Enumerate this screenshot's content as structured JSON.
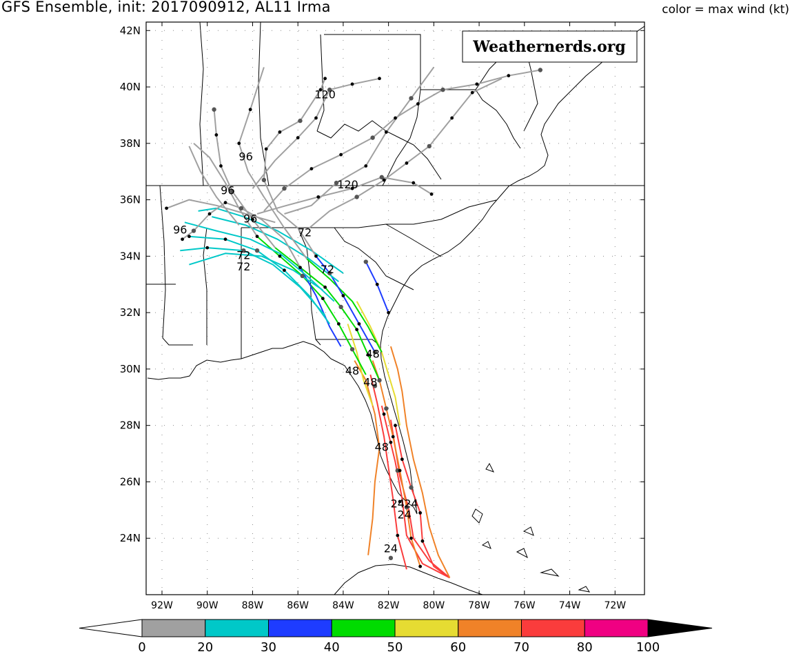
{
  "title": "GFS Ensemble, init: 2017090912, AL11 Irma",
  "color_label": "color = max wind (kt)",
  "watermark": "Weathernerds.org",
  "axes": {
    "lat_labels": [
      "42N",
      "40N",
      "38N",
      "36N",
      "34N",
      "32N",
      "30N",
      "28N",
      "26N",
      "24N"
    ],
    "lat_values": [
      42,
      40,
      38,
      36,
      34,
      32,
      30,
      28,
      26,
      24
    ],
    "lon_labels": [
      "92W",
      "90W",
      "88W",
      "86W",
      "84W",
      "82W",
      "80W",
      "78W",
      "76W",
      "74W",
      "72W"
    ],
    "lon_values": [
      -92,
      -90,
      -88,
      -86,
      -84,
      -82,
      -80,
      -78,
      -76,
      -74,
      -72
    ],
    "lon_range": [
      -92.7,
      -70.7
    ],
    "lat_range": [
      22.0,
      42.3
    ],
    "grid": true
  },
  "colorbar": {
    "ticks": [
      "0",
      "20",
      "30",
      "40",
      "50",
      "60",
      "70",
      "80",
      "100"
    ],
    "bins": [
      {
        "range": "0-20",
        "color": "#a0a0a0"
      },
      {
        "range": "20-30",
        "color": "#00c8c8"
      },
      {
        "range": "30-40",
        "color": "#1e3cff"
      },
      {
        "range": "40-50",
        "color": "#00dc00"
      },
      {
        "range": "50-60",
        "color": "#e6dc32"
      },
      {
        "range": "60-70",
        "color": "#f08228"
      },
      {
        "range": "70-80",
        "color": "#fa3c3c"
      },
      {
        "range": "80-100",
        "color": "#f00082"
      }
    ],
    "under_color": "#ffffff",
    "over_color": "#000000"
  },
  "forecast_hour_labels": [
    {
      "text": "24",
      "lon": -81.9,
      "lat": 23.5
    },
    {
      "text": "24",
      "lon": -81.6,
      "lat": 25.1
    },
    {
      "text": "24",
      "lon": -81.3,
      "lat": 24.7
    },
    {
      "text": "24",
      "lon": -81.0,
      "lat": 25.1
    },
    {
      "text": "48",
      "lon": -82.3,
      "lat": 27.1
    },
    {
      "text": "48",
      "lon": -82.8,
      "lat": 29.4
    },
    {
      "text": "48",
      "lon": -83.6,
      "lat": 29.8
    },
    {
      "text": "48",
      "lon": -82.7,
      "lat": 30.4
    },
    {
      "text": "72",
      "lon": -88.4,
      "lat": 33.5
    },
    {
      "text": "72",
      "lon": -88.4,
      "lat": 33.9
    },
    {
      "text": "72",
      "lon": -84.7,
      "lat": 33.4
    },
    {
      "text": "72",
      "lon": -85.7,
      "lat": 34.7
    },
    {
      "text": "96",
      "lon": -91.2,
      "lat": 34.8
    },
    {
      "text": "96",
      "lon": -88.1,
      "lat": 35.2
    },
    {
      "text": "96",
      "lon": -89.1,
      "lat": 36.2
    },
    {
      "text": "96",
      "lon": -88.3,
      "lat": 37.4
    },
    {
      "text": "120",
      "lon": -84.8,
      "lat": 39.6
    },
    {
      "text": "120",
      "lon": -83.8,
      "lat": 36.4
    }
  ],
  "tracks": [
    {
      "color": "#fa3c3c",
      "points": [
        [
          -79.3,
          22.6
        ],
        [
          -80.0,
          23.0
        ],
        [
          -80.5,
          23.9
        ],
        [
          -80.6,
          24.9
        ],
        [
          -81.0,
          25.8
        ],
        [
          -81.4,
          26.8
        ],
        [
          -81.7,
          28.0
        ]
      ]
    },
    {
      "color": "#fa3c3c",
      "points": [
        [
          -79.3,
          22.6
        ],
        [
          -80.2,
          23.2
        ],
        [
          -80.9,
          24.0
        ],
        [
          -81.1,
          25.0
        ],
        [
          -81.5,
          26.2
        ],
        [
          -81.7,
          27.2
        ],
        [
          -81.9,
          28.2
        ]
      ]
    },
    {
      "color": "#fa3c3c",
      "points": [
        [
          -79.3,
          22.6
        ],
        [
          -80.5,
          23.1
        ],
        [
          -81.2,
          24.1
        ],
        [
          -81.4,
          25.4
        ],
        [
          -81.7,
          26.7
        ],
        [
          -82.0,
          27.7
        ],
        [
          -82.3,
          28.7
        ]
      ]
    },
    {
      "color": "#f08228",
      "points": [
        [
          -79.3,
          22.6
        ],
        [
          -79.8,
          23.4
        ],
        [
          -80.2,
          24.4
        ],
        [
          -80.5,
          25.6
        ],
        [
          -80.9,
          26.8
        ],
        [
          -81.2,
          28.0
        ],
        [
          -81.4,
          29.2
        ],
        [
          -81.6,
          30.0
        ],
        [
          -81.9,
          30.8
        ]
      ]
    },
    {
      "color": "#f08228",
      "points": [
        [
          -80.6,
          23.0
        ],
        [
          -81.0,
          24.0
        ],
        [
          -81.2,
          25.1
        ],
        [
          -81.5,
          26.4
        ],
        [
          -81.8,
          27.6
        ],
        [
          -82.1,
          28.6
        ],
        [
          -82.4,
          29.6
        ],
        [
          -82.7,
          30.3
        ]
      ]
    },
    {
      "color": "#f08228",
      "points": [
        [
          -82.9,
          23.4
        ],
        [
          -82.7,
          24.7
        ],
        [
          -82.6,
          26.0
        ],
        [
          -82.4,
          27.2
        ],
        [
          -82.6,
          28.4
        ],
        [
          -83.0,
          29.6
        ],
        [
          -83.5,
          30.3
        ]
      ]
    },
    {
      "color": "#fa3c3c",
      "points": [
        [
          -81.2,
          22.9
        ],
        [
          -81.6,
          24.1
        ],
        [
          -81.8,
          25.4
        ],
        [
          -82.0,
          26.5
        ],
        [
          -82.2,
          27.6
        ],
        [
          -82.5,
          28.8
        ],
        [
          -82.8,
          29.8
        ]
      ]
    },
    {
      "color": "#e6dc32",
      "points": [
        [
          -81.5,
          28.0
        ],
        [
          -81.7,
          29.0
        ],
        [
          -82.0,
          29.8
        ],
        [
          -82.3,
          30.6
        ],
        [
          -82.8,
          31.5
        ],
        [
          -83.4,
          32.4
        ]
      ]
    },
    {
      "color": "#e6dc32",
      "points": [
        [
          -82.7,
          28.7
        ],
        [
          -83.1,
          29.6
        ],
        [
          -83.4,
          30.6
        ],
        [
          -83.8,
          31.6
        ]
      ]
    },
    {
      "color": "#00dc00",
      "points": [
        [
          -82.4,
          29.6
        ],
        [
          -82.9,
          30.5
        ],
        [
          -83.4,
          31.4
        ],
        [
          -84.1,
          32.2
        ],
        [
          -84.8,
          32.9
        ],
        [
          -85.9,
          33.6
        ],
        [
          -87.0,
          34.3
        ]
      ]
    },
    {
      "color": "#00dc00",
      "points": [
        [
          -83.0,
          29.8
        ],
        [
          -83.6,
          30.7
        ],
        [
          -84.2,
          31.6
        ],
        [
          -84.9,
          32.5
        ],
        [
          -85.8,
          33.3
        ],
        [
          -86.8,
          34.0
        ],
        [
          -87.8,
          34.7
        ]
      ]
    },
    {
      "color": "#00dc00",
      "points": [
        [
          -82.3,
          30.6
        ],
        [
          -82.9,
          31.5
        ],
        [
          -83.6,
          32.4
        ],
        [
          -84.6,
          33.2
        ],
        [
          -85.6,
          33.9
        ]
      ]
    },
    {
      "color": "#1e3cff",
      "points": [
        [
          -82.6,
          30.6
        ],
        [
          -83.3,
          31.6
        ],
        [
          -84.0,
          32.6
        ],
        [
          -84.6,
          33.4
        ],
        [
          -85.2,
          34.0
        ]
      ]
    },
    {
      "color": "#1e3cff",
      "points": [
        [
          -84.1,
          30.8
        ],
        [
          -84.6,
          31.5
        ],
        [
          -85.2,
          32.6
        ],
        [
          -85.9,
          33.6
        ]
      ]
    },
    {
      "color": "#1e3cff",
      "points": [
        [
          -82.0,
          32.0
        ],
        [
          -82.5,
          33.0
        ],
        [
          -83.0,
          33.8
        ]
      ]
    },
    {
      "color": "#00c8c8",
      "points": [
        [
          -84.6,
          31.6
        ],
        [
          -85.5,
          32.6
        ],
        [
          -86.6,
          33.5
        ],
        [
          -87.8,
          34.2
        ],
        [
          -89.2,
          34.6
        ],
        [
          -90.8,
          34.7
        ]
      ]
    },
    {
      "color": "#00c8c8",
      "points": [
        [
          -84.8,
          31.9
        ],
        [
          -85.9,
          32.9
        ],
        [
          -87.1,
          33.7
        ],
        [
          -88.4,
          34.2
        ],
        [
          -90.0,
          34.3
        ],
        [
          -91.2,
          34.2
        ]
      ]
    },
    {
      "color": "#00c8c8",
      "points": [
        [
          -84.4,
          32.4
        ],
        [
          -85.6,
          33.3
        ],
        [
          -86.8,
          34.1
        ],
        [
          -88.1,
          34.6
        ],
        [
          -89.6,
          34.9
        ],
        [
          -91.0,
          35.2
        ]
      ]
    },
    {
      "color": "#00c8c8",
      "points": [
        [
          -84.9,
          32.8
        ],
        [
          -86.2,
          33.5
        ],
        [
          -87.6,
          34.0
        ],
        [
          -89.2,
          34.1
        ],
        [
          -90.8,
          33.7
        ]
      ]
    },
    {
      "color": "#00c8c8",
      "points": [
        [
          -84.2,
          33.1
        ],
        [
          -85.5,
          33.9
        ],
        [
          -86.9,
          34.6
        ],
        [
          -88.3,
          35.1
        ],
        [
          -89.8,
          35.4
        ]
      ]
    },
    {
      "color": "#00c8c8",
      "points": [
        [
          -84.0,
          33.4
        ],
        [
          -85.4,
          34.2
        ],
        [
          -86.9,
          34.9
        ],
        [
          -88.4,
          35.4
        ],
        [
          -89.6,
          35.7
        ],
        [
          -90.4,
          35.6
        ]
      ]
    },
    {
      "color": "#a0a0a0",
      "points": [
        [
          -87.0,
          34.3
        ],
        [
          -88.0,
          35.3
        ],
        [
          -88.9,
          36.3
        ],
        [
          -89.4,
          37.2
        ],
        [
          -89.6,
          38.3
        ],
        [
          -89.7,
          39.2
        ]
      ]
    },
    {
      "color": "#a0a0a0",
      "points": [
        [
          -87.8,
          34.7
        ],
        [
          -88.6,
          35.7
        ],
        [
          -89.2,
          36.6
        ],
        [
          -89.9,
          37.5
        ],
        [
          -90.6,
          38.0
        ]
      ]
    },
    {
      "color": "#a0a0a0",
      "points": [
        [
          -85.6,
          33.9
        ],
        [
          -86.6,
          35.0
        ],
        [
          -87.5,
          36.1
        ],
        [
          -88.2,
          37.0
        ],
        [
          -88.6,
          38.0
        ],
        [
          -88.1,
          39.2
        ],
        [
          -87.5,
          40.7
        ]
      ]
    },
    {
      "color": "#a0a0a0",
      "points": [
        [
          -85.2,
          34.0
        ],
        [
          -86.0,
          35.0
        ],
        [
          -86.9,
          35.6
        ],
        [
          -87.5,
          36.7
        ],
        [
          -87.4,
          37.8
        ],
        [
          -86.8,
          38.4
        ],
        [
          -85.9,
          38.8
        ],
        [
          -85.0,
          39.9
        ],
        [
          -84.8,
          40.3
        ]
      ]
    },
    {
      "color": "#a0a0a0",
      "points": [
        [
          -85.9,
          33.6
        ],
        [
          -86.6,
          34.6
        ],
        [
          -87.6,
          35.3
        ],
        [
          -88.5,
          35.7
        ],
        [
          -89.2,
          35.9
        ],
        [
          -89.9,
          35.5
        ],
        [
          -90.6,
          34.9
        ],
        [
          -91.1,
          34.6
        ]
      ]
    },
    {
      "color": "#a0a0a0",
      "points": [
        [
          -87.0,
          35.2
        ],
        [
          -88.3,
          35.5
        ],
        [
          -89.6,
          35.8
        ],
        [
          -90.8,
          36.0
        ],
        [
          -91.8,
          35.7
        ]
      ]
    },
    {
      "color": "#a0a0a0",
      "points": [
        [
          -87.5,
          35.6
        ],
        [
          -86.6,
          36.4
        ],
        [
          -85.4,
          37.1
        ],
        [
          -84.1,
          37.6
        ],
        [
          -82.7,
          38.2
        ],
        [
          -81.7,
          38.9
        ],
        [
          -80.7,
          39.4
        ],
        [
          -79.6,
          39.9
        ],
        [
          -78.1,
          40.1
        ],
        [
          -76.7,
          40.4
        ],
        [
          -75.3,
          40.6
        ]
      ]
    },
    {
      "color": "#a0a0a0",
      "points": [
        [
          -87.8,
          35.5
        ],
        [
          -86.5,
          35.8
        ],
        [
          -85.1,
          36.1
        ],
        [
          -83.6,
          36.4
        ],
        [
          -82.3,
          36.8
        ],
        [
          -80.9,
          36.6
        ],
        [
          -80.1,
          36.2
        ]
      ]
    },
    {
      "color": "#a0a0a0",
      "points": [
        [
          -85.5,
          35.0
        ],
        [
          -84.6,
          35.6
        ],
        [
          -83.4,
          36.1
        ],
        [
          -82.2,
          36.7
        ],
        [
          -81.2,
          37.3
        ],
        [
          -80.2,
          37.9
        ],
        [
          -79.2,
          38.9
        ],
        [
          -78.3,
          39.8
        ],
        [
          -77.0,
          40.3
        ]
      ]
    },
    {
      "color": "#a0a0a0",
      "points": [
        [
          -86.6,
          35.5
        ],
        [
          -85.4,
          35.8
        ],
        [
          -84.3,
          36.6
        ],
        [
          -83.0,
          37.2
        ],
        [
          -82.1,
          38.4
        ],
        [
          -81.0,
          39.6
        ],
        [
          -80.0,
          40.7
        ]
      ]
    },
    {
      "color": "#a0a0a0",
      "points": [
        [
          -88.6,
          35.1
        ],
        [
          -89.6,
          36.1
        ],
        [
          -90.3,
          37.0
        ],
        [
          -90.8,
          37.9
        ]
      ]
    },
    {
      "color": "#a0a0a0",
      "points": [
        [
          -88.0,
          36.4
        ],
        [
          -87.0,
          37.4
        ],
        [
          -86.0,
          38.2
        ],
        [
          -85.2,
          38.9
        ],
        [
          -84.6,
          39.9
        ],
        [
          -83.6,
          40.1
        ],
        [
          -82.4,
          40.3
        ]
      ]
    }
  ],
  "track_points": [
    [
      -81.9,
      23.3
    ],
    [
      -81.6,
      24.1
    ],
    [
      -81.5,
      25.3
    ],
    [
      -81.6,
      26.4
    ],
    [
      -81.9,
      27.4
    ],
    [
      -82.2,
      28.4
    ],
    [
      -82.6,
      29.4
    ],
    [
      -80.6,
      23.0
    ],
    [
      -81.0,
      24.0
    ],
    [
      -81.2,
      25.1
    ],
    [
      -81.5,
      26.4
    ],
    [
      -81.8,
      27.6
    ],
    [
      -82.1,
      28.6
    ],
    [
      -80.5,
      23.9
    ],
    [
      -80.6,
      24.9
    ],
    [
      -81.0,
      25.8
    ],
    [
      -81.4,
      26.8
    ],
    [
      -81.7,
      28.0
    ],
    [
      -82.4,
      29.6
    ],
    [
      -82.9,
      30.5
    ],
    [
      -83.4,
      31.4
    ],
    [
      -84.1,
      32.2
    ],
    [
      -84.8,
      32.9
    ],
    [
      -85.9,
      33.6
    ],
    [
      -83.6,
      30.7
    ],
    [
      -84.2,
      31.6
    ],
    [
      -84.9,
      32.5
    ],
    [
      -85.8,
      33.3
    ],
    [
      -86.8,
      34.0
    ],
    [
      -87.8,
      34.7
    ],
    [
      -82.6,
      30.6
    ],
    [
      -83.3,
      31.6
    ],
    [
      -84.0,
      32.6
    ],
    [
      -84.6,
      33.4
    ],
    [
      -85.2,
      34.0
    ],
    [
      -86.6,
      33.5
    ],
    [
      -87.8,
      34.2
    ],
    [
      -89.2,
      34.6
    ],
    [
      -90.8,
      34.7
    ],
    [
      -88.4,
      34.2
    ],
    [
      -90.0,
      34.3
    ],
    [
      -88.0,
      35.3
    ],
    [
      -88.9,
      36.3
    ],
    [
      -89.4,
      37.2
    ],
    [
      -89.6,
      38.3
    ],
    [
      -89.7,
      39.2
    ],
    [
      -88.6,
      38.0
    ],
    [
      -88.1,
      39.2
    ],
    [
      -87.5,
      36.7
    ],
    [
      -87.4,
      37.8
    ],
    [
      -86.8,
      38.4
    ],
    [
      -85.9,
      38.8
    ],
    [
      -85.0,
      39.9
    ],
    [
      -84.8,
      40.3
    ],
    [
      -88.5,
      35.7
    ],
    [
      -89.2,
      35.9
    ],
    [
      -89.9,
      35.5
    ],
    [
      -90.6,
      34.9
    ],
    [
      -91.1,
      34.6
    ],
    [
      -91.8,
      35.7
    ],
    [
      -86.6,
      36.4
    ],
    [
      -85.4,
      37.1
    ],
    [
      -84.1,
      37.6
    ],
    [
      -82.7,
      38.2
    ],
    [
      -81.7,
      38.9
    ],
    [
      -80.7,
      39.4
    ],
    [
      -79.6,
      39.9
    ],
    [
      -78.1,
      40.1
    ],
    [
      -76.7,
      40.4
    ],
    [
      -75.3,
      40.6
    ],
    [
      -85.1,
      36.1
    ],
    [
      -83.6,
      36.4
    ],
    [
      -82.3,
      36.8
    ],
    [
      -80.9,
      36.6
    ],
    [
      -80.1,
      36.2
    ],
    [
      -83.4,
      36.1
    ],
    [
      -82.2,
      36.7
    ],
    [
      -81.2,
      37.3
    ],
    [
      -80.2,
      37.9
    ],
    [
      -79.2,
      38.9
    ],
    [
      -78.3,
      39.8
    ],
    [
      -84.3,
      36.6
    ],
    [
      -83.0,
      37.2
    ],
    [
      -82.1,
      38.4
    ],
    [
      -81.0,
      39.6
    ],
    [
      -86.0,
      38.2
    ],
    [
      -85.2,
      38.9
    ],
    [
      -84.6,
      39.9
    ],
    [
      -83.6,
      40.1
    ],
    [
      -82.4,
      40.3
    ],
    [
      -83.0,
      33.8
    ],
    [
      -82.5,
      33.0
    ],
    [
      -82.0,
      32.0
    ]
  ]
}
